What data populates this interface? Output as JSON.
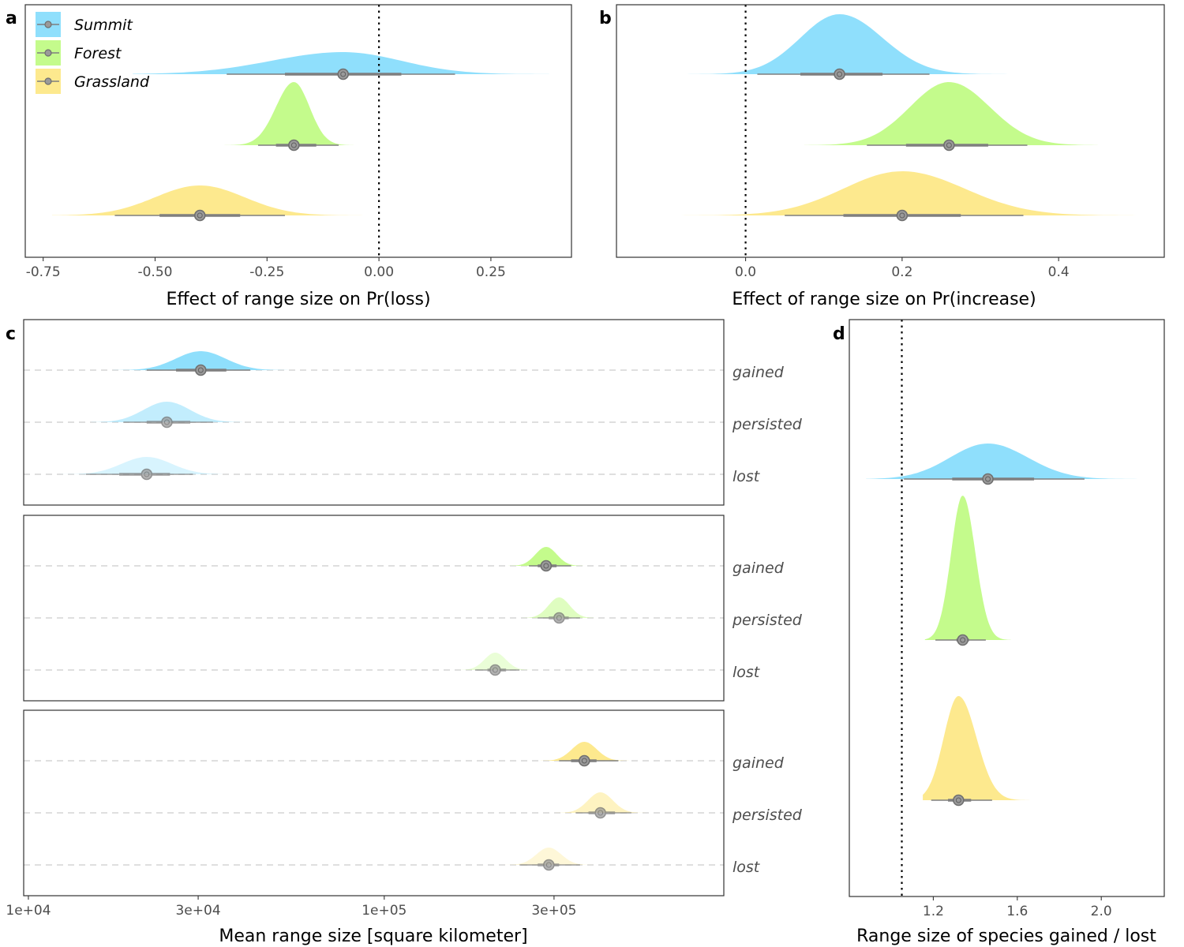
{
  "colors": {
    "summit": "#8fdffc",
    "forest": "#c4fb8c",
    "grassland": "#fde98e",
    "interval": "#7f7f7f"
  },
  "legend": {
    "placement": "top-left",
    "entries": [
      {
        "label": "Summit",
        "color": "#8fdffc"
      },
      {
        "label": "Forest",
        "color": "#c4fb8c"
      },
      {
        "label": "Grassland",
        "color": "#fde98e"
      }
    ]
  },
  "chart_data": [
    {
      "panel": "a",
      "type": "area",
      "xlabel": "Effect of range size on Pr(loss)",
      "xlim": [
        -0.79,
        0.43
      ],
      "xticks": [
        -0.75,
        -0.5,
        -0.25,
        0.0,
        0.25
      ],
      "xtick_labels": [
        "-0.75",
        "-0.50",
        "-0.25",
        "0.00",
        "0.25"
      ],
      "reference_line": 0.0,
      "series": [
        {
          "name": "Summit",
          "color": "#8fdffc",
          "median": -0.08,
          "q66": [
            -0.21,
            0.05
          ],
          "q95": [
            -0.34,
            0.17
          ],
          "range": [
            -0.55,
            0.38
          ],
          "sd_left": 0.16,
          "sd_right": 0.13,
          "skew": 0.0
        },
        {
          "name": "Forest",
          "color": "#c4fb8c",
          "median": -0.19,
          "q66": [
            -0.23,
            -0.14
          ],
          "q95": [
            -0.27,
            -0.09
          ],
          "range": [
            -0.35,
            -0.03
          ],
          "sd_left": 0.04,
          "sd_right": 0.035,
          "skew": 0.0
        },
        {
          "name": "Grassland",
          "color": "#fde98e",
          "median": -0.4,
          "q66": [
            -0.49,
            -0.31
          ],
          "q95": [
            -0.59,
            -0.21
          ],
          "range": [
            -0.73,
            -0.01
          ],
          "sd_left": 0.1,
          "sd_right": 0.1,
          "skew": 0.0
        }
      ]
    },
    {
      "panel": "b",
      "type": "area",
      "xlabel": "Effect of range size on Pr(increase)",
      "xlim": [
        -0.165,
        0.535
      ],
      "xticks": [
        0.0,
        0.2,
        0.4
      ],
      "xtick_labels": [
        "0.0",
        "0.2",
        "0.4"
      ],
      "reference_line": 0.0,
      "series": [
        {
          "name": "Summit",
          "color": "#8fdffc",
          "median": 0.12,
          "q66": [
            0.07,
            0.175
          ],
          "q95": [
            0.015,
            0.235
          ],
          "range": [
            -0.09,
            0.35
          ],
          "sd_left": 0.05,
          "sd_right": 0.055,
          "skew": 0.0
        },
        {
          "name": "Forest",
          "color": "#c4fb8c",
          "median": 0.26,
          "q66": [
            0.205,
            0.31
          ],
          "q95": [
            0.155,
            0.36
          ],
          "range": [
            0.075,
            0.45
          ],
          "sd_left": 0.05,
          "sd_right": 0.052,
          "skew": 0.0
        },
        {
          "name": "Grassland",
          "color": "#fde98e",
          "median": 0.2,
          "q66": [
            0.125,
            0.275
          ],
          "q95": [
            0.05,
            0.355
          ],
          "range": [
            -0.14,
            0.5
          ],
          "sd_left": 0.075,
          "sd_right": 0.08,
          "skew": 0.0
        }
      ]
    },
    {
      "panel": "c",
      "type": "area",
      "xlabel": "Mean range size [square kilometer]",
      "x_scale": "log10",
      "xlim": [
        9700,
        900000
      ],
      "xticks": [
        10000,
        30000,
        100000,
        300000
      ],
      "xtick_labels": [
        "1e+04",
        "3e+04",
        "1e+05",
        "3e+05"
      ],
      "facets": [
        {
          "habitat": "Summit",
          "rows": [
            {
              "label": "gained",
              "color": "#8fdffc",
              "opacity": 1.0,
              "median": 30500,
              "q66": [
                26000,
                36000
              ],
              "q95": [
                21500,
                42000
              ],
              "range": [
                17000,
                54000
              ],
              "sd": 0.07
            },
            {
              "label": "persisted",
              "color": "#8fdffc",
              "opacity": 0.55,
              "median": 24500,
              "q66": [
                21500,
                28500
              ],
              "q95": [
                18500,
                33000
              ],
              "range": [
                15000,
                40000
              ],
              "sd": 0.065
            },
            {
              "label": "lost",
              "color": "#8fdffc",
              "opacity": 0.35,
              "median": 21500,
              "q66": [
                18000,
                25000
              ],
              "q95": [
                14500,
                29000
              ],
              "range": [
                11000,
                35000
              ],
              "sd": 0.07
            }
          ]
        },
        {
          "habitat": "Forest",
          "rows": [
            {
              "label": "gained",
              "color": "#c4fb8c",
              "opacity": 1.0,
              "median": 285000,
              "q66": [
                270000,
                305000
              ],
              "q95": [
                255000,
                335000
              ],
              "range": [
                220000,
                370000
              ],
              "sd": 0.03
            },
            {
              "label": "persisted",
              "color": "#c4fb8c",
              "opacity": 0.55,
              "median": 310000,
              "q66": [
                290000,
                330000
              ],
              "q95": [
                270000,
                355000
              ],
              "range": [
                240000,
                390000
              ],
              "sd": 0.03
            },
            {
              "label": "lost",
              "color": "#c4fb8c",
              "opacity": 0.35,
              "median": 205000,
              "q66": [
                195000,
                220000
              ],
              "q95": [
                180000,
                240000
              ],
              "range": [
                160000,
                270000
              ],
              "sd": 0.03
            }
          ]
        },
        {
          "habitat": "Grassland",
          "rows": [
            {
              "label": "gained",
              "color": "#fde98e",
              "opacity": 1.0,
              "median": 365000,
              "q66": [
                335000,
                395000
              ],
              "q95": [
                310000,
                455000
              ],
              "range": [
                260000,
                560000
              ],
              "sd": 0.035
            },
            {
              "label": "persisted",
              "color": "#fde98e",
              "opacity": 0.55,
              "median": 405000,
              "q66": [
                375000,
                445000
              ],
              "q95": [
                345000,
                495000
              ],
              "range": [
                300000,
                610000
              ],
              "sd": 0.035
            },
            {
              "label": "lost",
              "color": "#fde98e",
              "opacity": 0.35,
              "median": 290000,
              "q66": [
                270000,
                310000
              ],
              "q95": [
                240000,
                355000
              ],
              "range": [
                200000,
                420000
              ],
              "sd": 0.035
            }
          ]
        }
      ]
    },
    {
      "panel": "d",
      "type": "area",
      "xlabel": "Range size of species gained / lost",
      "xlim": [
        0.8,
        2.3
      ],
      "xticks": [
        1.2,
        1.6,
        2.0
      ],
      "xtick_labels": [
        "1.2",
        "1.6",
        "2.0"
      ],
      "reference_line": 1.05,
      "series": [
        {
          "name": "Summit",
          "color": "#8fdffc",
          "median": 1.46,
          "q66": [
            1.29,
            1.68
          ],
          "q95": [
            1.06,
            1.92
          ],
          "range": [
            0.88,
            2.25
          ],
          "sd_left": 0.18,
          "sd_right": 0.19,
          "skew": 0.0
        },
        {
          "name": "Forest",
          "color": "#c4fb8c",
          "median": 1.34,
          "q66": [
            1.31,
            1.37
          ],
          "q95": [
            1.21,
            1.45
          ],
          "range": [
            1.16,
            1.57
          ],
          "sd_left": 0.055,
          "sd_right": 0.06,
          "skew": 0.0
        },
        {
          "name": "Grassland",
          "color": "#fde98e",
          "median": 1.32,
          "q66": [
            1.27,
            1.38
          ],
          "q95": [
            1.19,
            1.48
          ],
          "range": [
            1.15,
            1.66
          ],
          "sd_left": 0.07,
          "sd_right": 0.085,
          "skew": 0.0
        }
      ]
    }
  ]
}
